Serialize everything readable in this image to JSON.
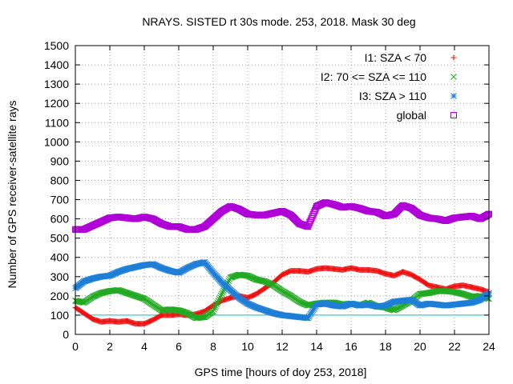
{
  "chart_data": {
    "type": "scatter",
    "title": "NRAYS. SISTED rt 30s mode. 253, 2018. Mask 30 deg",
    "xlabel": "GPS time [hours of doy 253, 2018]",
    "ylabel": "Number of GPS receiver-satellite rays",
    "xlim": [
      0,
      24
    ],
    "ylim": [
      0,
      1500
    ],
    "xticks": [
      0,
      2,
      4,
      6,
      8,
      10,
      12,
      14,
      16,
      18,
      20,
      22,
      24
    ],
    "yticks": [
      0,
      100,
      200,
      300,
      400,
      500,
      600,
      700,
      800,
      900,
      1000,
      1100,
      1200,
      1300,
      1400,
      1500
    ],
    "grid": true,
    "legend_position": "top-right",
    "reference_line": {
      "y": 100,
      "color": "#00c8c8"
    },
    "series": [
      {
        "name": "I1: SZA < 70",
        "color": "#ee1111",
        "marker": "plus",
        "x": [
          0,
          0.5,
          1,
          1.5,
          2,
          2.5,
          3,
          3.5,
          4,
          4.5,
          5,
          5.5,
          6,
          6.5,
          7,
          7.5,
          8,
          8.5,
          9,
          9.5,
          10,
          10.5,
          11,
          11.5,
          12,
          12.5,
          13,
          13.5,
          14,
          14.5,
          15,
          15.5,
          16,
          16.5,
          17,
          17.5,
          18,
          18.5,
          19,
          19.5,
          20,
          20.5,
          21,
          21.5,
          22,
          22.5,
          23,
          23.5,
          24
        ],
        "values": [
          140,
          110,
          80,
          65,
          70,
          65,
          70,
          55,
          55,
          75,
          100,
          100,
          105,
          100,
          105,
          120,
          150,
          175,
          190,
          200,
          190,
          210,
          240,
          270,
          310,
          330,
          330,
          325,
          340,
          345,
          340,
          335,
          345,
          335,
          335,
          330,
          315,
          305,
          325,
          310,
          285,
          255,
          245,
          235,
          250,
          255,
          245,
          235,
          220
        ]
      },
      {
        "name": "I2: 70 <= SZA <= 110",
        "color": "#22aa22",
        "marker": "x",
        "x": [
          0,
          0.5,
          1,
          1.5,
          2,
          2.5,
          3,
          3.5,
          4,
          4.5,
          5,
          5.5,
          6,
          6.5,
          7,
          7.5,
          8,
          8.5,
          9,
          9.5,
          10,
          10.5,
          11,
          11.5,
          12,
          12.5,
          13,
          13.5,
          14,
          14.5,
          15,
          15.5,
          16,
          16.5,
          17,
          17.5,
          18,
          18.5,
          19,
          19.5,
          20,
          20.5,
          21,
          21.5,
          22,
          22.5,
          23,
          23.5,
          24
        ],
        "values": [
          175,
          165,
          195,
          215,
          225,
          230,
          215,
          200,
          185,
          155,
          125,
          130,
          125,
          110,
          85,
          90,
          120,
          210,
          295,
          310,
          305,
          285,
          275,
          255,
          225,
          200,
          170,
          150,
          160,
          165,
          165,
          155,
          160,
          150,
          165,
          145,
          140,
          125,
          150,
          175,
          210,
          215,
          225,
          225,
          220,
          210,
          195,
          200,
          185
        ]
      },
      {
        "name": "I3: SZA > 110",
        "color": "#1e7fd8",
        "marker": "star",
        "x": [
          0,
          0.5,
          1,
          1.5,
          2,
          2.5,
          3,
          3.5,
          4,
          4.5,
          5,
          5.5,
          6,
          6.5,
          7,
          7.5,
          8,
          8.5,
          9,
          9.5,
          10,
          10.5,
          11,
          11.5,
          12,
          12.5,
          13,
          13.5,
          14,
          14.5,
          15,
          15.5,
          16,
          16.5,
          17,
          17.5,
          18,
          18.5,
          19,
          19.5,
          20,
          20.5,
          21,
          21.5,
          22,
          22.5,
          23,
          23.5,
          24
        ],
        "values": [
          240,
          275,
          290,
          300,
          305,
          325,
          340,
          350,
          360,
          365,
          345,
          330,
          320,
          345,
          365,
          375,
          320,
          270,
          230,
          190,
          160,
          140,
          125,
          110,
          100,
          95,
          90,
          85,
          155,
          160,
          150,
          145,
          160,
          150,
          155,
          145,
          150,
          170,
          175,
          180,
          150,
          160,
          155,
          150,
          155,
          160,
          165,
          180,
          215
        ]
      },
      {
        "name": "global",
        "color": "#b000d8",
        "marker": "square",
        "x": [
          0,
          0.5,
          1,
          1.5,
          2,
          2.5,
          3,
          3.5,
          4,
          4.5,
          5,
          5.5,
          6,
          6.5,
          7,
          7.5,
          8,
          8.5,
          9,
          9.5,
          10,
          10.5,
          11,
          11.5,
          12,
          12.5,
          13,
          13.5,
          14,
          14.5,
          15,
          15.5,
          16,
          16.5,
          17,
          17.5,
          18,
          18.5,
          19,
          19.5,
          20,
          20.5,
          21,
          21.5,
          22,
          22.5,
          23,
          23.5,
          24
        ],
        "values": [
          545,
          545,
          565,
          585,
          605,
          610,
          605,
          600,
          610,
          600,
          575,
          560,
          560,
          545,
          545,
          560,
          600,
          640,
          665,
          650,
          625,
          620,
          620,
          630,
          640,
          620,
          575,
          560,
          665,
          685,
          675,
          660,
          665,
          655,
          640,
          635,
          615,
          625,
          670,
          655,
          620,
          605,
          600,
          590,
          605,
          610,
          615,
          600,
          625
        ]
      }
    ]
  }
}
